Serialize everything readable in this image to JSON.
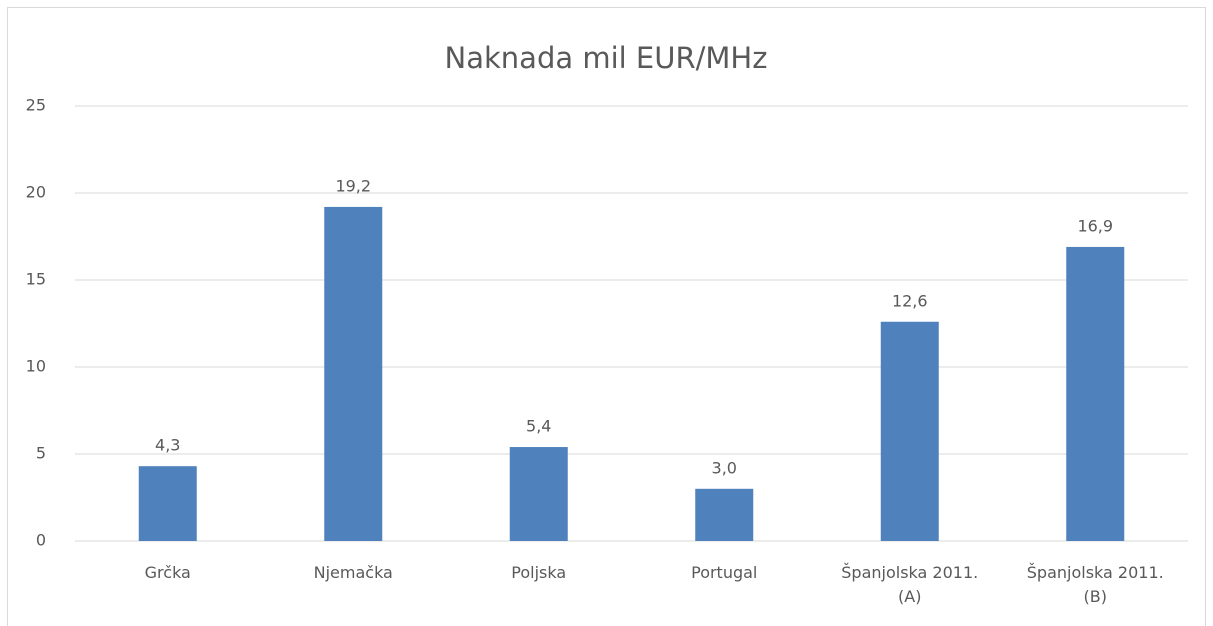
{
  "chart_data": {
    "type": "bar",
    "title": "Naknada mil EUR/MHz",
    "categories": [
      "Grčka",
      "Njemačka",
      "Poljska",
      "Portugal",
      "Španjolska 2011. (A)",
      "Španjolska 2011. (B)"
    ],
    "values": [
      4.3,
      19.2,
      5.4,
      3.0,
      12.6,
      16.9
    ],
    "value_labels": [
      "4,3",
      "19,2",
      "5,4",
      "3,0",
      "12,6",
      "16,9"
    ],
    "color": "#4f81bd",
    "ylim": [
      0,
      25
    ],
    "yticks": [
      0,
      5,
      10,
      15,
      20,
      25
    ],
    "grid": true
  }
}
